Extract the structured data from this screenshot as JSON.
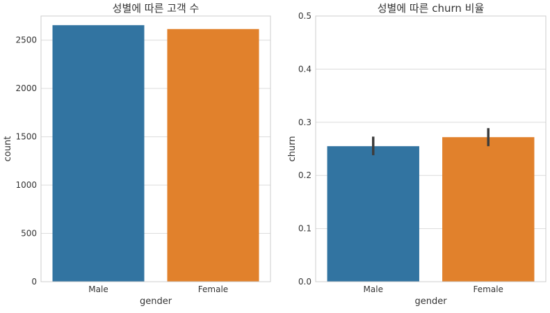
{
  "chart_data": [
    {
      "type": "bar",
      "title": "성별에 따른 고객 수",
      "xlabel": "gender",
      "ylabel": "count",
      "categories": [
        "Male",
        "Female"
      ],
      "values": [
        2655,
        2615
      ],
      "ylim": [
        0,
        2750
      ],
      "yticks": [
        0,
        500,
        1000,
        1500,
        2000,
        2500
      ],
      "colors": [
        "#3274a1",
        "#e1812c"
      ],
      "grid": true
    },
    {
      "type": "bar",
      "title": "성별에 따른 churn 비율",
      "xlabel": "gender",
      "ylabel": "churn",
      "categories": [
        "Male",
        "Female"
      ],
      "values": [
        0.255,
        0.272
      ],
      "error_low": [
        0.238,
        0.255
      ],
      "error_high": [
        0.273,
        0.289
      ],
      "ylim": [
        0,
        0.5
      ],
      "yticks": [
        0.0,
        0.1,
        0.2,
        0.3,
        0.4,
        0.5
      ],
      "colors": [
        "#3274a1",
        "#e1812c"
      ],
      "grid": true
    }
  ]
}
